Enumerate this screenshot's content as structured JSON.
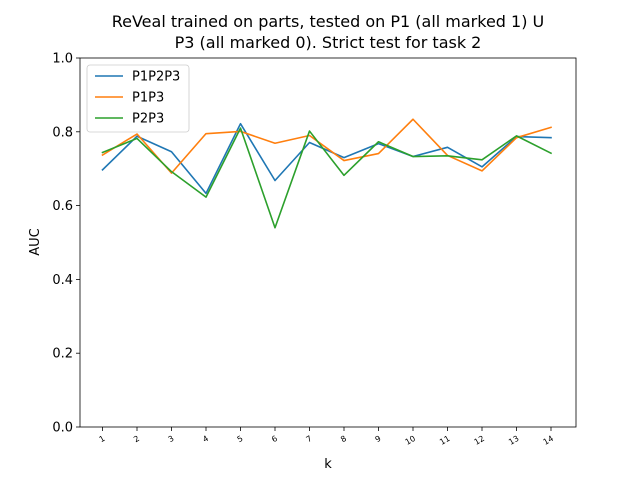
{
  "chart_data": {
    "type": "line",
    "title_line1": "ReVeal trained on parts, tested on P1 (all marked 1) U",
    "title_line2": "P3 (all marked 0). Strict test for task 2",
    "xlabel": "k",
    "ylabel": "AUC",
    "ylim": [
      0,
      1
    ],
    "yticks": [
      "0.0",
      "0.2",
      "0.4",
      "0.6",
      "0.8",
      "1.0"
    ],
    "ytick_values": [
      0.0,
      0.2,
      0.4,
      0.6,
      0.8,
      1.0
    ],
    "categories": [
      "1",
      "2",
      "3",
      "4",
      "5",
      "6",
      "7",
      "8",
      "9",
      "10",
      "11",
      "12",
      "13",
      "14"
    ],
    "legend_position": "upper-left",
    "grid": false,
    "series": [
      {
        "name": "P1P2P3",
        "color": "#1f77b4",
        "values": [
          0.697,
          0.788,
          0.746,
          0.633,
          0.822,
          0.668,
          0.771,
          0.73,
          0.768,
          0.733,
          0.758,
          0.705,
          0.787,
          0.784
        ]
      },
      {
        "name": "P1P3",
        "color": "#ff7f0e",
        "values": [
          0.737,
          0.794,
          0.688,
          0.795,
          0.801,
          0.769,
          0.79,
          0.722,
          0.741,
          0.834,
          0.736,
          0.694,
          0.784,
          0.812
        ]
      },
      {
        "name": "P2P3",
        "color": "#2ca02c",
        "values": [
          0.744,
          0.782,
          0.692,
          0.623,
          0.81,
          0.54,
          0.802,
          0.682,
          0.773,
          0.733,
          0.735,
          0.724,
          0.789,
          0.742
        ]
      }
    ]
  }
}
